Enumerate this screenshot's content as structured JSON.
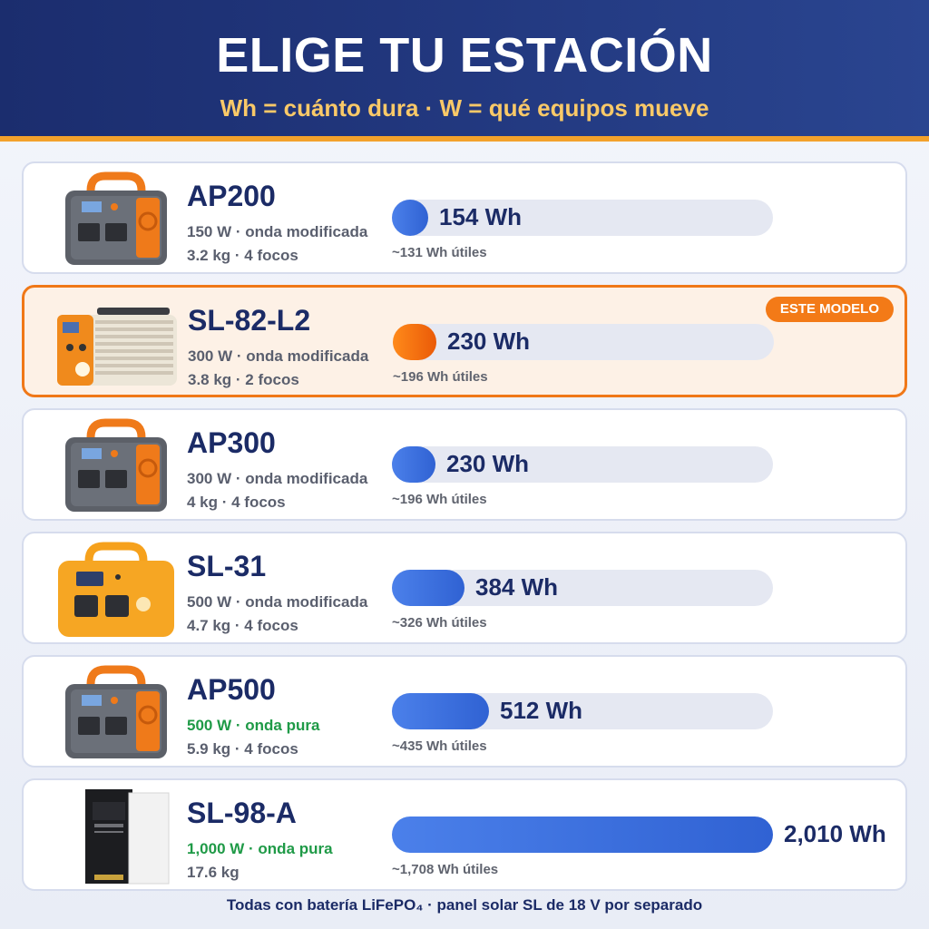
{
  "header": {
    "title": "ELIGE TU ESTACIÓN",
    "subtitle": "Wh = cuánto dura · W = qué equipos mueve"
  },
  "badge_label": "ESTE MODELO",
  "colors": {
    "header_bg": "#22387f",
    "accent_orange": "#f07818",
    "bar_blue": "#3a6ee0",
    "pure_wave_green": "#1f9a47",
    "title_navy": "#1b2b66"
  },
  "stations": [
    {
      "name": "AP200",
      "power": "150 W · onda modificada",
      "weight": "3.2 kg · 4 focos",
      "capacity": "154 Wh",
      "capacity_value": 154,
      "usable": "~131 Wh útiles",
      "pure_wave": false,
      "highlight": false,
      "image": "gray-orange-power-station"
    },
    {
      "name": "SL-82-L2",
      "power": "300 W · onda modificada",
      "weight": "3.8 kg · 2 focos",
      "capacity": "230 Wh",
      "capacity_value": 230,
      "usable": "~196 Wh útiles",
      "pure_wave": false,
      "highlight": true,
      "image": "finned-aluminum-power-station"
    },
    {
      "name": "AP300",
      "power": "300 W · onda modificada",
      "weight": "4 kg · 4 focos",
      "capacity": "230 Wh",
      "capacity_value": 230,
      "usable": "~196 Wh útiles",
      "pure_wave": false,
      "highlight": false,
      "image": "gray-orange-power-station"
    },
    {
      "name": "SL-31",
      "power": "500 W · onda modificada",
      "weight": "4.7 kg · 4 focos",
      "capacity": "384 Wh",
      "capacity_value": 384,
      "usable": "~326 Wh útiles",
      "pure_wave": false,
      "highlight": false,
      "image": "yellow-power-station"
    },
    {
      "name": "AP500",
      "power": "500 W · onda pura",
      "weight": "5.9 kg · 4 focos",
      "capacity": "512 Wh",
      "capacity_value": 512,
      "usable": "~435 Wh útiles",
      "pure_wave": true,
      "highlight": false,
      "image": "gray-orange-power-station"
    },
    {
      "name": "SL-98-A",
      "power": "1,000 W · onda pura",
      "weight": "17.6 kg",
      "capacity": "2,010 Wh",
      "capacity_value": 2010,
      "usable": "~1,708 Wh útiles",
      "pure_wave": true,
      "highlight": false,
      "image": "white-tower-power-station"
    }
  ],
  "footer": "Todas con batería LiFePO₄ · panel solar SL de 18 V por separado"
}
